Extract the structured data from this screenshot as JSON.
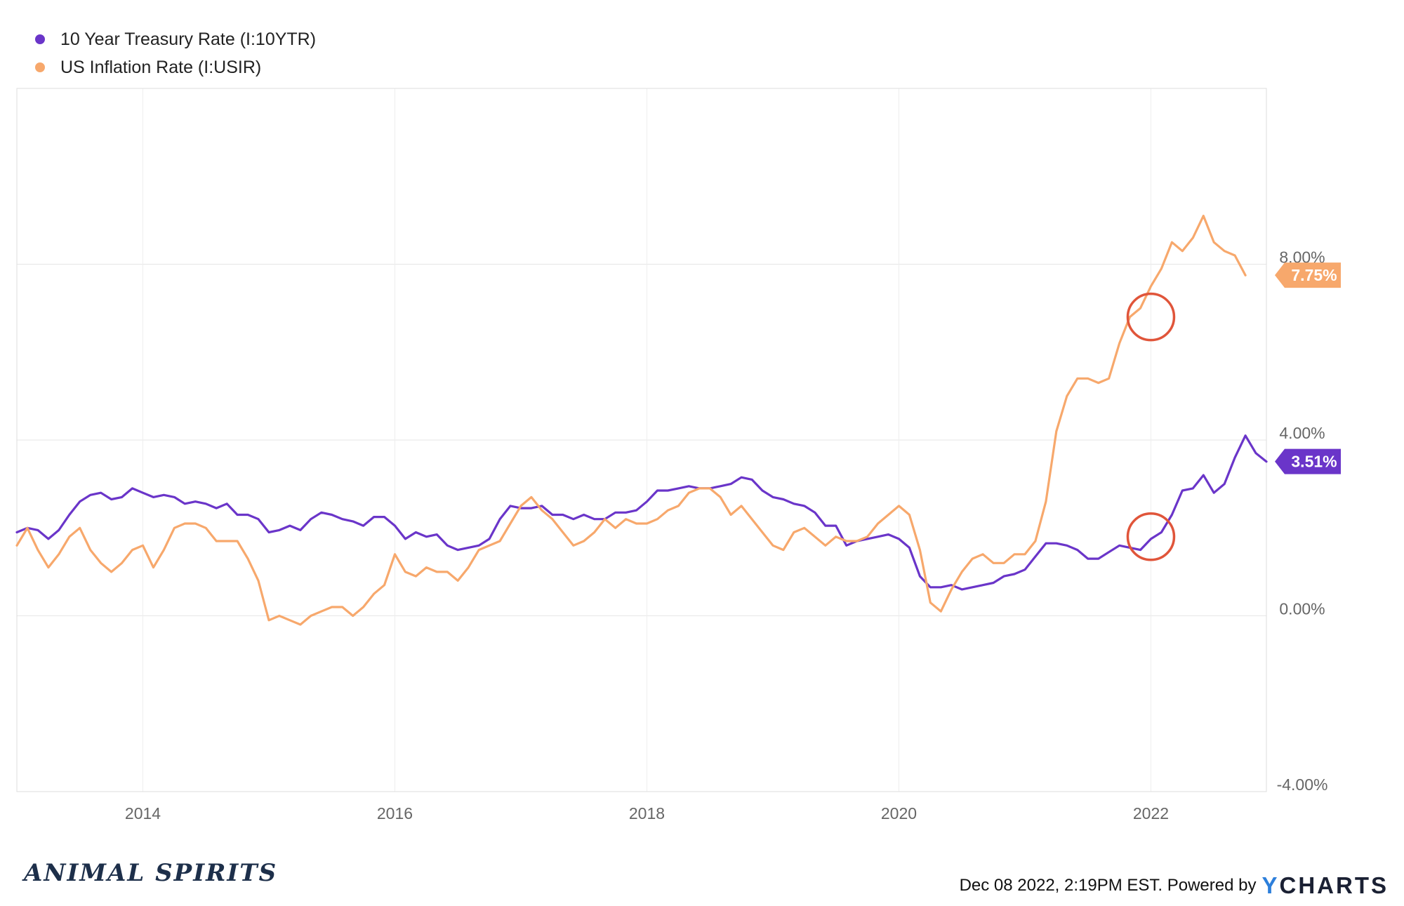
{
  "chart_data": {
    "type": "line",
    "xlim": [
      "2013-01",
      "2022-12"
    ],
    "ylim": [
      -4,
      12
    ],
    "y_ticks": [
      "8.00%",
      "4.00%",
      "0.00%",
      "-4.00%"
    ],
    "y_tick_values": [
      8,
      4,
      0,
      -4
    ],
    "x_ticks": [
      "2014",
      "2016",
      "2018",
      "2020",
      "2022"
    ],
    "grid": true,
    "legend_position": "top-left",
    "series": [
      {
        "name": "10 Year Treasury Rate (I:10YTR)",
        "color": "#6a35c9",
        "end_label": "3.51%",
        "points": [
          [
            "2013-01",
            1.9
          ],
          [
            "2013-02",
            2.0
          ],
          [
            "2013-03",
            1.95
          ],
          [
            "2013-04",
            1.75
          ],
          [
            "2013-05",
            1.95
          ],
          [
            "2013-06",
            2.3
          ],
          [
            "2013-07",
            2.6
          ],
          [
            "2013-08",
            2.75
          ],
          [
            "2013-09",
            2.8
          ],
          [
            "2013-10",
            2.65
          ],
          [
            "2013-11",
            2.7
          ],
          [
            "2013-12",
            2.9
          ],
          [
            "2014-01",
            2.8
          ],
          [
            "2014-02",
            2.7
          ],
          [
            "2014-03",
            2.75
          ],
          [
            "2014-04",
            2.7
          ],
          [
            "2014-05",
            2.55
          ],
          [
            "2014-06",
            2.6
          ],
          [
            "2014-07",
            2.55
          ],
          [
            "2014-08",
            2.45
          ],
          [
            "2014-09",
            2.55
          ],
          [
            "2014-10",
            2.3
          ],
          [
            "2014-11",
            2.3
          ],
          [
            "2014-12",
            2.2
          ],
          [
            "2015-01",
            1.9
          ],
          [
            "2015-02",
            1.95
          ],
          [
            "2015-03",
            2.05
          ],
          [
            "2015-04",
            1.95
          ],
          [
            "2015-05",
            2.2
          ],
          [
            "2015-06",
            2.35
          ],
          [
            "2015-07",
            2.3
          ],
          [
            "2015-08",
            2.2
          ],
          [
            "2015-09",
            2.15
          ],
          [
            "2015-10",
            2.05
          ],
          [
            "2015-11",
            2.25
          ],
          [
            "2015-12",
            2.25
          ],
          [
            "2016-01",
            2.05
          ],
          [
            "2016-02",
            1.75
          ],
          [
            "2016-03",
            1.9
          ],
          [
            "2016-04",
            1.8
          ],
          [
            "2016-05",
            1.85
          ],
          [
            "2016-06",
            1.6
          ],
          [
            "2016-07",
            1.5
          ],
          [
            "2016-08",
            1.55
          ],
          [
            "2016-09",
            1.6
          ],
          [
            "2016-10",
            1.75
          ],
          [
            "2016-11",
            2.2
          ],
          [
            "2016-12",
            2.5
          ],
          [
            "2017-01",
            2.45
          ],
          [
            "2017-02",
            2.45
          ],
          [
            "2017-03",
            2.5
          ],
          [
            "2017-04",
            2.3
          ],
          [
            "2017-05",
            2.3
          ],
          [
            "2017-06",
            2.2
          ],
          [
            "2017-07",
            2.3
          ],
          [
            "2017-08",
            2.2
          ],
          [
            "2017-09",
            2.2
          ],
          [
            "2017-10",
            2.35
          ],
          [
            "2017-11",
            2.35
          ],
          [
            "2017-12",
            2.4
          ],
          [
            "2018-01",
            2.6
          ],
          [
            "2018-02",
            2.85
          ],
          [
            "2018-03",
            2.85
          ],
          [
            "2018-04",
            2.9
          ],
          [
            "2018-05",
            2.95
          ],
          [
            "2018-06",
            2.9
          ],
          [
            "2018-07",
            2.9
          ],
          [
            "2018-08",
            2.95
          ],
          [
            "2018-09",
            3.0
          ],
          [
            "2018-10",
            3.15
          ],
          [
            "2018-11",
            3.1
          ],
          [
            "2018-12",
            2.85
          ],
          [
            "2019-01",
            2.7
          ],
          [
            "2019-02",
            2.65
          ],
          [
            "2019-03",
            2.55
          ],
          [
            "2019-04",
            2.5
          ],
          [
            "2019-05",
            2.35
          ],
          [
            "2019-06",
            2.05
          ],
          [
            "2019-07",
            2.05
          ],
          [
            "2019-08",
            1.6
          ],
          [
            "2019-09",
            1.7
          ],
          [
            "2019-10",
            1.75
          ],
          [
            "2019-11",
            1.8
          ],
          [
            "2019-12",
            1.85
          ],
          [
            "2020-01",
            1.75
          ],
          [
            "2020-02",
            1.55
          ],
          [
            "2020-03",
            0.9
          ],
          [
            "2020-04",
            0.65
          ],
          [
            "2020-05",
            0.65
          ],
          [
            "2020-06",
            0.7
          ],
          [
            "2020-07",
            0.6
          ],
          [
            "2020-08",
            0.65
          ],
          [
            "2020-09",
            0.7
          ],
          [
            "2020-10",
            0.75
          ],
          [
            "2020-11",
            0.9
          ],
          [
            "2020-12",
            0.95
          ],
          [
            "2021-01",
            1.05
          ],
          [
            "2021-02",
            1.35
          ],
          [
            "2021-03",
            1.65
          ],
          [
            "2021-04",
            1.65
          ],
          [
            "2021-05",
            1.6
          ],
          [
            "2021-06",
            1.5
          ],
          [
            "2021-07",
            1.3
          ],
          [
            "2021-08",
            1.3
          ],
          [
            "2021-09",
            1.45
          ],
          [
            "2021-10",
            1.6
          ],
          [
            "2021-11",
            1.55
          ],
          [
            "2021-12",
            1.5
          ],
          [
            "2022-01",
            1.75
          ],
          [
            "2022-02",
            1.9
          ],
          [
            "2022-03",
            2.3
          ],
          [
            "2022-04",
            2.85
          ],
          [
            "2022-05",
            2.9
          ],
          [
            "2022-06",
            3.2
          ],
          [
            "2022-07",
            2.8
          ],
          [
            "2022-08",
            3.0
          ],
          [
            "2022-09",
            3.6
          ],
          [
            "2022-10",
            4.1
          ],
          [
            "2022-11",
            3.7
          ],
          [
            "2022-12",
            3.51
          ]
        ]
      },
      {
        "name": "US Inflation Rate (I:USIR)",
        "color": "#f7a86c",
        "end_label": "7.75%",
        "points": [
          [
            "2013-01",
            1.6
          ],
          [
            "2013-02",
            2.0
          ],
          [
            "2013-03",
            1.5
          ],
          [
            "2013-04",
            1.1
          ],
          [
            "2013-05",
            1.4
          ],
          [
            "2013-06",
            1.8
          ],
          [
            "2013-07",
            2.0
          ],
          [
            "2013-08",
            1.5
          ],
          [
            "2013-09",
            1.2
          ],
          [
            "2013-10",
            1.0
          ],
          [
            "2013-11",
            1.2
          ],
          [
            "2013-12",
            1.5
          ],
          [
            "2014-01",
            1.6
          ],
          [
            "2014-02",
            1.1
          ],
          [
            "2014-03",
            1.5
          ],
          [
            "2014-04",
            2.0
          ],
          [
            "2014-05",
            2.1
          ],
          [
            "2014-06",
            2.1
          ],
          [
            "2014-07",
            2.0
          ],
          [
            "2014-08",
            1.7
          ],
          [
            "2014-09",
            1.7
          ],
          [
            "2014-10",
            1.7
          ],
          [
            "2014-11",
            1.3
          ],
          [
            "2014-12",
            0.8
          ],
          [
            "2015-01",
            -0.1
          ],
          [
            "2015-02",
            0.0
          ],
          [
            "2015-03",
            -0.1
          ],
          [
            "2015-04",
            -0.2
          ],
          [
            "2015-05",
            0.0
          ],
          [
            "2015-06",
            0.1
          ],
          [
            "2015-07",
            0.2
          ],
          [
            "2015-08",
            0.2
          ],
          [
            "2015-09",
            0.0
          ],
          [
            "2015-10",
            0.2
          ],
          [
            "2015-11",
            0.5
          ],
          [
            "2015-12",
            0.7
          ],
          [
            "2016-01",
            1.4
          ],
          [
            "2016-02",
            1.0
          ],
          [
            "2016-03",
            0.9
          ],
          [
            "2016-04",
            1.1
          ],
          [
            "2016-05",
            1.0
          ],
          [
            "2016-06",
            1.0
          ],
          [
            "2016-07",
            0.8
          ],
          [
            "2016-08",
            1.1
          ],
          [
            "2016-09",
            1.5
          ],
          [
            "2016-10",
            1.6
          ],
          [
            "2016-11",
            1.7
          ],
          [
            "2016-12",
            2.1
          ],
          [
            "2017-01",
            2.5
          ],
          [
            "2017-02",
            2.7
          ],
          [
            "2017-03",
            2.4
          ],
          [
            "2017-04",
            2.2
          ],
          [
            "2017-05",
            1.9
          ],
          [
            "2017-06",
            1.6
          ],
          [
            "2017-07",
            1.7
          ],
          [
            "2017-08",
            1.9
          ],
          [
            "2017-09",
            2.2
          ],
          [
            "2017-10",
            2.0
          ],
          [
            "2017-11",
            2.2
          ],
          [
            "2017-12",
            2.1
          ],
          [
            "2018-01",
            2.1
          ],
          [
            "2018-02",
            2.2
          ],
          [
            "2018-03",
            2.4
          ],
          [
            "2018-04",
            2.5
          ],
          [
            "2018-05",
            2.8
          ],
          [
            "2018-06",
            2.9
          ],
          [
            "2018-07",
            2.9
          ],
          [
            "2018-08",
            2.7
          ],
          [
            "2018-09",
            2.3
          ],
          [
            "2018-10",
            2.5
          ],
          [
            "2018-11",
            2.2
          ],
          [
            "2018-12",
            1.9
          ],
          [
            "2019-01",
            1.6
          ],
          [
            "2019-02",
            1.5
          ],
          [
            "2019-03",
            1.9
          ],
          [
            "2019-04",
            2.0
          ],
          [
            "2019-05",
            1.8
          ],
          [
            "2019-06",
            1.6
          ],
          [
            "2019-07",
            1.8
          ],
          [
            "2019-08",
            1.7
          ],
          [
            "2019-09",
            1.7
          ],
          [
            "2019-10",
            1.8
          ],
          [
            "2019-11",
            2.1
          ],
          [
            "2019-12",
            2.3
          ],
          [
            "2020-01",
            2.5
          ],
          [
            "2020-02",
            2.3
          ],
          [
            "2020-03",
            1.5
          ],
          [
            "2020-04",
            0.3
          ],
          [
            "2020-05",
            0.1
          ],
          [
            "2020-06",
            0.6
          ],
          [
            "2020-07",
            1.0
          ],
          [
            "2020-08",
            1.3
          ],
          [
            "2020-09",
            1.4
          ],
          [
            "2020-10",
            1.2
          ],
          [
            "2020-11",
            1.2
          ],
          [
            "2020-12",
            1.4
          ],
          [
            "2021-01",
            1.4
          ],
          [
            "2021-02",
            1.7
          ],
          [
            "2021-03",
            2.6
          ],
          [
            "2021-04",
            4.2
          ],
          [
            "2021-05",
            5.0
          ],
          [
            "2021-06",
            5.4
          ],
          [
            "2021-07",
            5.4
          ],
          [
            "2021-08",
            5.3
          ],
          [
            "2021-09",
            5.4
          ],
          [
            "2021-10",
            6.2
          ],
          [
            "2021-11",
            6.8
          ],
          [
            "2021-12",
            7.0
          ],
          [
            "2022-01",
            7.5
          ],
          [
            "2022-02",
            7.9
          ],
          [
            "2022-03",
            8.5
          ],
          [
            "2022-04",
            8.3
          ],
          [
            "2022-05",
            8.6
          ],
          [
            "2022-06",
            9.1
          ],
          [
            "2022-07",
            8.5
          ],
          [
            "2022-08",
            8.3
          ],
          [
            "2022-09",
            8.2
          ],
          [
            "2022-10",
            7.75
          ]
        ]
      }
    ],
    "annotations": [
      {
        "type": "circle",
        "x": "2022-01",
        "y": 6.8,
        "color": "#e0553a"
      },
      {
        "type": "circle",
        "x": "2022-01",
        "y": 1.8,
        "color": "#e0553a"
      }
    ]
  },
  "footer": {
    "logo_text": "ANIMAL SPIRITS",
    "timestamp": "Dec 08 2022, 2:19PM EST. Powered by",
    "brand_y": "Y",
    "brand_rest": "CHARTS"
  }
}
